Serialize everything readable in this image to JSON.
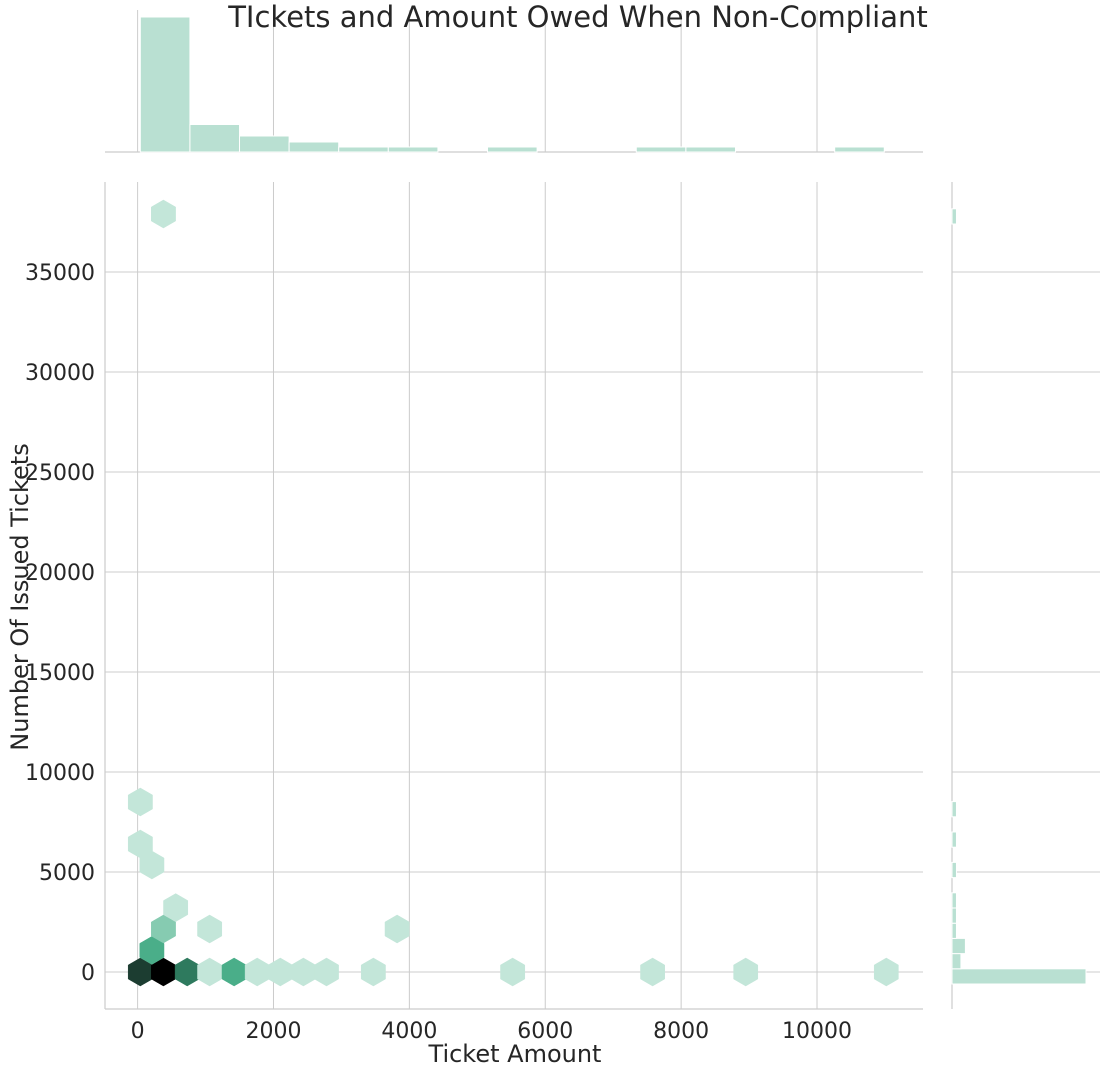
{
  "chart_data": {
    "type": "hexbin-joint",
    "title": "TIckets and Amount Owed When Non-Compliant",
    "xlabel": "Ticket Amount",
    "ylabel": "Number Of Issued Tickets",
    "xlim": [
      -480,
      11560
    ],
    "ylim": [
      -1850,
      39500
    ],
    "xticks": [
      0,
      2000,
      4000,
      6000,
      8000,
      10000
    ],
    "yticks": [
      0,
      5000,
      10000,
      15000,
      20000,
      25000,
      30000,
      35000
    ],
    "grid": true,
    "colors": {
      "light": "#c3e6d9",
      "mid_light": "#86cbb1",
      "mid": "#4aae89",
      "dark": "#2e7a5e",
      "darker": "#1c3d31",
      "darkest": "#000000",
      "histogram": "#b9e0d2",
      "grid": "#cccccc"
    },
    "hexbins": [
      {
        "x": 40,
        "y": 0,
        "level": "darker"
      },
      {
        "x": 380,
        "y": 0,
        "level": "darkest"
      },
      {
        "x": 730,
        "y": 0,
        "level": "dark"
      },
      {
        "x": 1060,
        "y": 0,
        "level": "light"
      },
      {
        "x": 1420,
        "y": 0,
        "level": "mid"
      },
      {
        "x": 1760,
        "y": 0,
        "level": "light"
      },
      {
        "x": 2100,
        "y": 0,
        "level": "light"
      },
      {
        "x": 2440,
        "y": 0,
        "level": "light"
      },
      {
        "x": 2780,
        "y": 0,
        "level": "light"
      },
      {
        "x": 3470,
        "y": 0,
        "level": "light"
      },
      {
        "x": 5520,
        "y": 0,
        "level": "light"
      },
      {
        "x": 7580,
        "y": 0,
        "level": "light"
      },
      {
        "x": 8950,
        "y": 0,
        "level": "light"
      },
      {
        "x": 11020,
        "y": 0,
        "level": "light"
      },
      {
        "x": 210,
        "y": 1080,
        "level": "mid"
      },
      {
        "x": 380,
        "y": 2150,
        "level": "mid_light"
      },
      {
        "x": 1060,
        "y": 2150,
        "level": "light"
      },
      {
        "x": 3820,
        "y": 2150,
        "level": "light"
      },
      {
        "x": 560,
        "y": 3220,
        "level": "light"
      },
      {
        "x": 210,
        "y": 5350,
        "level": "light"
      },
      {
        "x": 40,
        "y": 6400,
        "level": "light"
      },
      {
        "x": 40,
        "y": 8500,
        "level": "light"
      },
      {
        "x": 380,
        "y": 37900,
        "level": "light"
      }
    ],
    "x_histogram": {
      "bin_edges": [
        40,
        770,
        1500,
        2230,
        2960,
        3690,
        4420,
        5150,
        5880,
        6610,
        7340,
        8070,
        8800,
        9530,
        10260,
        10990
      ],
      "counts": [
        27,
        5.5,
        3.2,
        2,
        1,
        1,
        0,
        1,
        0,
        0,
        1,
        1,
        0,
        0,
        1
      ]
    },
    "y_histogram": {
      "bin_edges": [
        -600,
        160,
        920,
        1680,
        2440,
        3200,
        3960,
        4720,
        5480,
        6240,
        7000,
        7760,
        8520,
        9280,
        37400,
        38160
      ],
      "counts": [
        30,
        2,
        3,
        1,
        1,
        1,
        0,
        1,
        0,
        1,
        0,
        1,
        0,
        0,
        1
      ]
    }
  }
}
